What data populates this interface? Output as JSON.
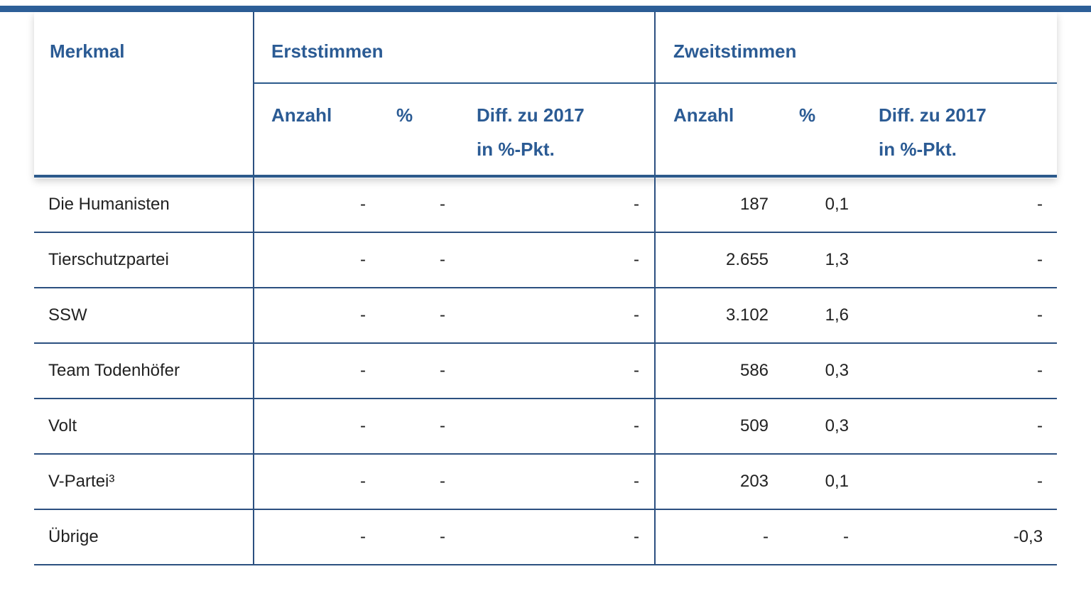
{
  "header": {
    "merkmal": "Merkmal",
    "erststimmen": "Erststimmen",
    "zweitstimmen": "Zweitstimmen",
    "sub": {
      "anzahl": "Anzahl",
      "percent": "%",
      "diff_line1": "Diff. zu 2017",
      "diff_line2": "in %-Pkt."
    }
  },
  "rows": [
    {
      "name": "Die Humanisten",
      "e_anzahl": "-",
      "e_pct": "-",
      "e_diff": "-",
      "z_anzahl": "187",
      "z_pct": "0,1",
      "z_diff": "-"
    },
    {
      "name": "Tierschutzpartei",
      "e_anzahl": "-",
      "e_pct": "-",
      "e_diff": "-",
      "z_anzahl": "2.655",
      "z_pct": "1,3",
      "z_diff": "-"
    },
    {
      "name": "SSW",
      "e_anzahl": "-",
      "e_pct": "-",
      "e_diff": "-",
      "z_anzahl": "3.102",
      "z_pct": "1,6",
      "z_diff": "-"
    },
    {
      "name": "Team Todenhöfer",
      "e_anzahl": "-",
      "e_pct": "-",
      "e_diff": "-",
      "z_anzahl": "586",
      "z_pct": "0,3",
      "z_diff": "-"
    },
    {
      "name": "Volt",
      "e_anzahl": "-",
      "e_pct": "-",
      "e_diff": "-",
      "z_anzahl": "509",
      "z_pct": "0,3",
      "z_diff": "-"
    },
    {
      "name": "V-Partei³",
      "e_anzahl": "-",
      "e_pct": "-",
      "e_diff": "-",
      "z_anzahl": "203",
      "z_pct": "0,1",
      "z_diff": "-"
    },
    {
      "name": "Übrige",
      "e_anzahl": "-",
      "e_pct": "-",
      "e_diff": "-",
      "z_anzahl": "-",
      "z_pct": "-",
      "z_diff": "-0,3"
    }
  ]
}
